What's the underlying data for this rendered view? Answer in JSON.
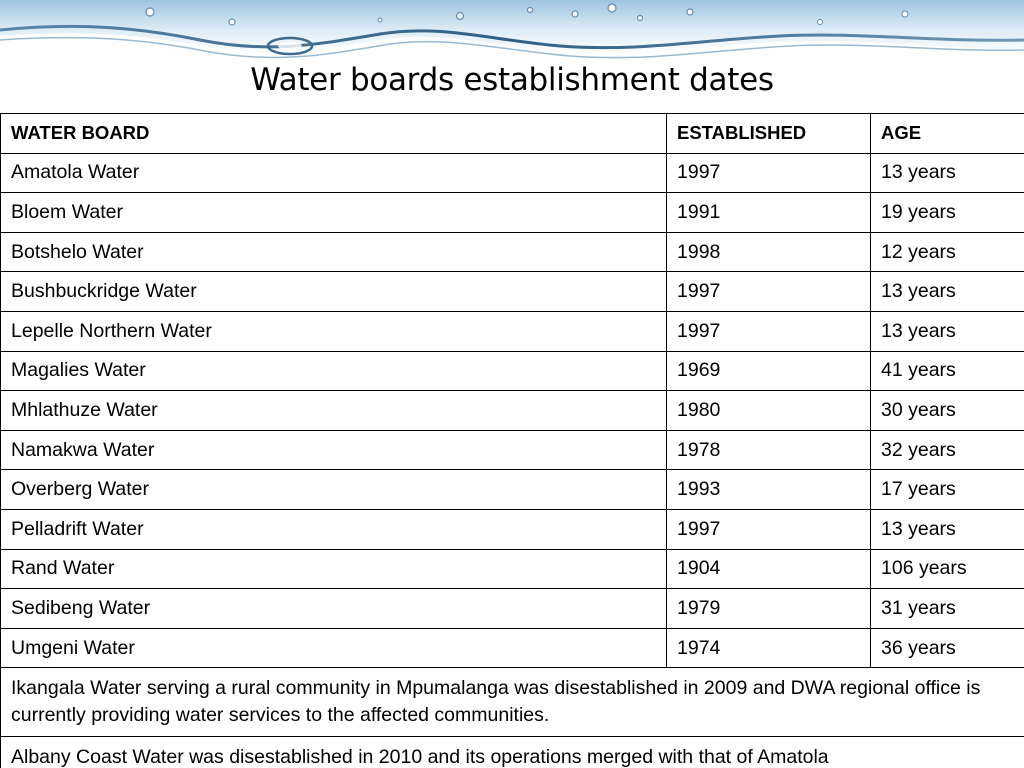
{
  "title": "Water boards establishment dates",
  "banner_icon": "water-splash",
  "colors": {
    "water_dark": "#3f6f93",
    "water_light": "#cfe3f1",
    "border": "#000000"
  },
  "table": {
    "headers": [
      "WATER BOARD",
      "ESTABLISHED",
      "AGE"
    ],
    "rows": [
      [
        "Amatola Water",
        "1997",
        "13 years"
      ],
      [
        "Bloem Water",
        "1991",
        "19 years"
      ],
      [
        "Botshelo Water",
        "1998",
        "12 years"
      ],
      [
        "Bushbuckridge Water",
        "1997",
        "13 years"
      ],
      [
        "Lepelle Northern Water",
        "1997",
        "13 years"
      ],
      [
        "Magalies Water",
        "1969",
        "41 years"
      ],
      [
        "Mhlathuze Water",
        "1980",
        "30 years"
      ],
      [
        "Namakwa Water",
        "1978",
        "32 years"
      ],
      [
        "Overberg Water",
        "1993",
        "17 years"
      ],
      [
        "Pelladrift Water",
        "1997",
        "13 years"
      ],
      [
        "Rand Water",
        "1904",
        "106 years"
      ],
      [
        "Sedibeng Water",
        "1979",
        "31 years"
      ],
      [
        "Umgeni Water",
        "1974",
        "36 years"
      ]
    ],
    "notes": [
      "Ikangala Water serving a rural community in Mpumalanga was disestablished in 2009 and DWA regional office is currently providing water services to the affected communities.",
      "Albany Coast Water was disestablished in 2010 and its operations merged with that of Amatola"
    ]
  }
}
